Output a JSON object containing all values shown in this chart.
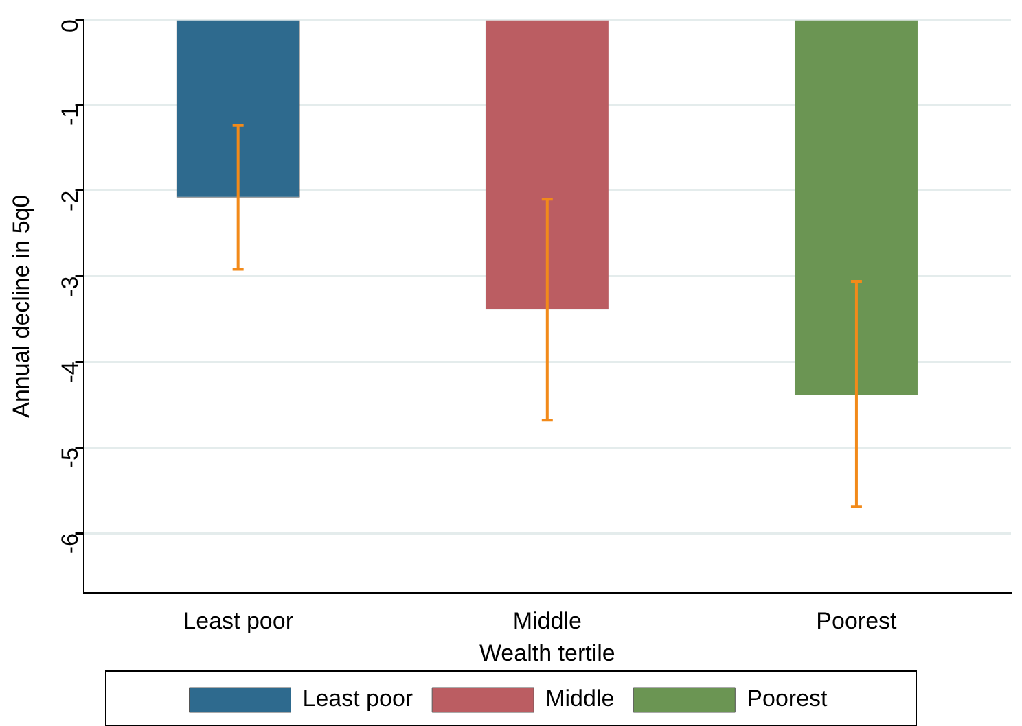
{
  "chart_data": {
    "type": "bar",
    "xlabel": "Wealth tertile",
    "ylabel": "Annual decline in 5q0",
    "categories": [
      "Least poor",
      "Middle",
      "Poorest"
    ],
    "series": [
      {
        "name": "Least poor",
        "color": "#2e6a8e",
        "values": [
          -2.08,
          null,
          null
        ],
        "errors": [
          [
            -2.92,
            -1.24
          ],
          null,
          null
        ]
      },
      {
        "name": "Middle",
        "color": "#bb5d62",
        "values": [
          null,
          -3.39,
          null
        ],
        "errors": [
          null,
          [
            -4.68,
            -2.1
          ],
          null
        ]
      },
      {
        "name": "Poorest",
        "color": "#6b9553",
        "values": [
          null,
          null,
          -4.39
        ],
        "errors": [
          null,
          null,
          [
            -5.69,
            -3.06
          ]
        ]
      }
    ],
    "ylim": [
      -6.7,
      0
    ],
    "yticks": [
      0,
      -1,
      -2,
      -3,
      -4,
      -5,
      -6
    ],
    "grid": "y",
    "legend": "bottom"
  }
}
